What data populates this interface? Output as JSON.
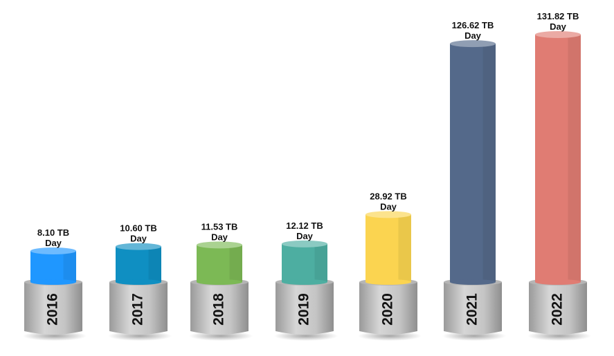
{
  "chart_data": {
    "type": "bar",
    "title": "",
    "xlabel": "",
    "ylabel": "",
    "categories": [
      "2016",
      "2017",
      "2018",
      "2019",
      "2020",
      "2021",
      "2022"
    ],
    "values": [
      8.1,
      10.6,
      11.53,
      12.12,
      28.92,
      126.62,
      131.82
    ],
    "unit": "TB Day",
    "value_labels": [
      [
        "8.10 TB",
        "Day"
      ],
      [
        "10.60 TB",
        "Day"
      ],
      [
        "11.53 TB",
        "Day"
      ],
      [
        "12.12 TB",
        "Day"
      ],
      [
        "28.92 TB",
        "Day"
      ],
      [
        "126.62 TB",
        "Day"
      ],
      [
        "131.82 TB",
        "Day"
      ]
    ],
    "colors": [
      "#1f97ff",
      "#0f8fc2",
      "#7cb955",
      "#4daea1",
      "#fbd450",
      "#54698a",
      "#e07c73"
    ],
    "pedestal_color": "#c8c8c8",
    "grid": false,
    "legend": "none"
  }
}
